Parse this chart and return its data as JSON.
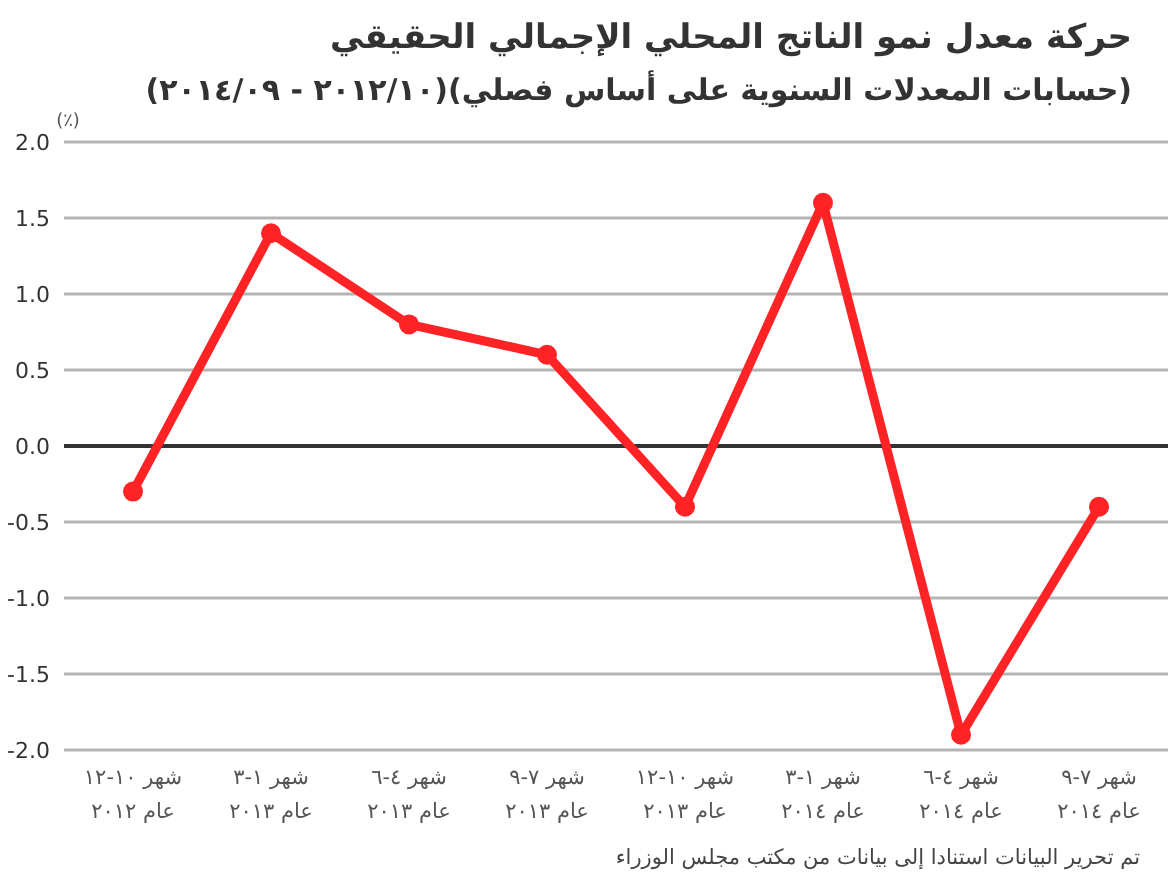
{
  "chart_data": {
    "type": "line",
    "title": "حركة معدل نمو الناتج المحلي الإجمالي الحقيقي",
    "subtitle": "(حسابات المعدلات السنوية على أساس فصلي)(٢٠١٢/١٠ - ٢٠١٤/٠٩)",
    "ylabel": "(٪)",
    "annotations": [
      "تم تحرير البيانات استنادا إلى بيانات من مكتب مجلس الوزراء"
    ],
    "categories": [
      "شهر ١٠-١٢\nعام ٢٠١٢",
      "شهر ١-٣\nعام ٢٠١٣",
      "شهر ٤-٦\nعام ٢٠١٣",
      "شهر ٧-٩\nعام ٢٠١٣",
      "شهر ١٠-١٢\nعام ٢٠١٣",
      "شهر ١-٣\nعام ٢٠١٤",
      "شهر ٤-٦\nعام ٢٠١٤",
      "شهر ٧-٩\nعام ٢٠١٤"
    ],
    "series": [
      {
        "color": "#ff2326",
        "values": [
          -0.3,
          1.4,
          0.8,
          0.6,
          -0.4,
          1.6,
          -1.9,
          -0.4
        ]
      }
    ],
    "ylim": [
      -2,
      2
    ],
    "yticks": [
      {
        "value": 2,
        "label": "2.0"
      },
      {
        "value": 1.5,
        "label": "1.5"
      },
      {
        "value": 1,
        "label": "1.0"
      },
      {
        "value": 0.5,
        "label": "0.5"
      },
      {
        "value": 0,
        "label": "0.0"
      },
      {
        "value": -0.5,
        "label": "-0.5"
      },
      {
        "value": -1,
        "label": "-1.0"
      },
      {
        "value": -1.5,
        "label": "-1.5"
      },
      {
        "value": -2,
        "label": "-2.0"
      }
    ],
    "ref_lines": [
      {
        "axis": "y",
        "value": 0,
        "color": "#333333"
      }
    ],
    "grid": "y",
    "marker": "circle",
    "line_style": "solid"
  }
}
